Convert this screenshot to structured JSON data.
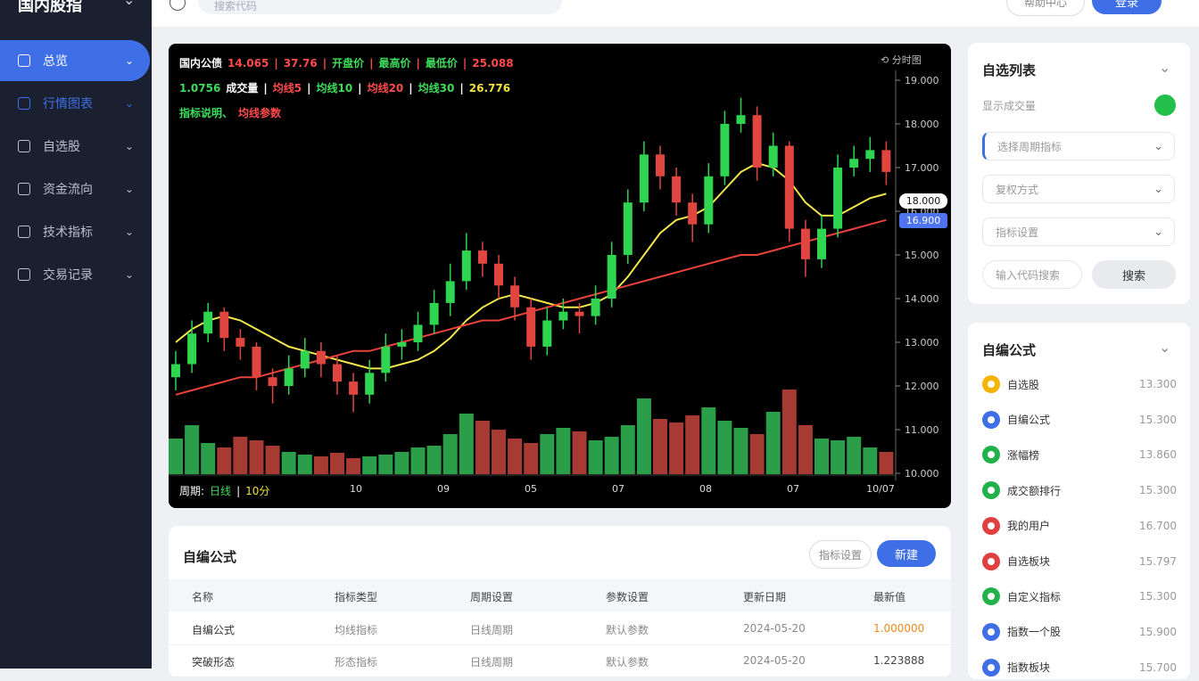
{
  "sidebar": {
    "title": "国内股指",
    "items": [
      "总览",
      "行情图表",
      "自选股",
      "资金流向",
      "技术指标",
      "交易记录"
    ]
  },
  "topbar": {
    "search_placeholder": "搜索代码",
    "buttons": [
      "帮助中心",
      "登录"
    ]
  },
  "chart_data": {
    "type": "candlestick",
    "legend_rows": [
      [
        {
          "text": "国内公债",
          "color": "#ffffff"
        },
        {
          "text": "14.065",
          "color": "#ff4a4a"
        },
        {
          "text": "|",
          "color": "#ff4a4a"
        },
        {
          "text": "37.76",
          "color": "#ff4a4a"
        },
        {
          "text": "|",
          "color": "#ff4a4a"
        },
        {
          "text": "开盘价",
          "color": "#3ddc5a"
        },
        {
          "text": "|",
          "color": "#ff4a4a"
        },
        {
          "text": "最高价",
          "color": "#3ddc5a"
        },
        {
          "text": "|",
          "color": "#ff4a4a"
        },
        {
          "text": "最低价",
          "color": "#3ddc5a"
        },
        {
          "text": "|",
          "color": "#ff4a4a"
        },
        {
          "text": "25.088",
          "color": "#ff4a4a"
        }
      ],
      [
        {
          "text": "1.0756",
          "color": "#3ddc5a"
        },
        {
          "text": "成交量",
          "color": "#ffffff"
        },
        {
          "text": "|",
          "color": "#ffffff"
        },
        {
          "text": "均线5",
          "color": "#ff4a4a"
        },
        {
          "text": "|",
          "color": "#ffffff"
        },
        {
          "text": "均线10",
          "color": "#3ddc5a"
        },
        {
          "text": "|",
          "color": "#ffffff"
        },
        {
          "text": "均线20",
          "color": "#ff4a4a"
        },
        {
          "text": "|",
          "color": "#ffffff"
        },
        {
          "text": "均线30",
          "color": "#3ddc5a"
        },
        {
          "text": "|",
          "color": "#ffffff"
        },
        {
          "text": "26.776",
          "color": "#f0e040"
        }
      ],
      [
        {
          "text": "指标说明、",
          "color": "#3ddc5a"
        },
        {
          "text": "均线参数",
          "color": "#ff4a4a"
        }
      ]
    ],
    "toolbar_text": "⟲ 分时图",
    "footer": [
      {
        "text": "周期:",
        "color": "#ffffff"
      },
      {
        "text": "日线",
        "color": "#3ddc5a"
      },
      {
        "text": "|",
        "color": "#ffffff"
      },
      {
        "text": "10分",
        "color": "#f0e040"
      }
    ],
    "up_color": "#2fd451",
    "down_color": "#e0463f",
    "ylim": [
      10,
      19
    ],
    "yticks": [
      {
        "value": 19,
        "label": "19.000"
      },
      {
        "value": 18,
        "label": "18.000"
      },
      {
        "value": 17,
        "label": "17.000"
      },
      {
        "value": 16,
        "label": "16.000"
      },
      {
        "value": 15,
        "label": "15.000"
      },
      {
        "value": 14,
        "label": "14.000"
      },
      {
        "value": 13,
        "label": "13.000"
      },
      {
        "value": 12,
        "label": "12.000"
      },
      {
        "value": 11,
        "label": "11.000"
      },
      {
        "value": 10,
        "label": "10.000"
      }
    ],
    "x_labels": [
      "10",
      "09",
      "05",
      "07",
      "08",
      "07",
      "10/07"
    ],
    "price_tags": [
      {
        "text": "18.000",
        "color": "#ffffff"
      },
      {
        "text": "16.900",
        "color": "#4f74f0"
      }
    ],
    "candles": [
      [
        12.2,
        12.8,
        11.9,
        12.5
      ],
      [
        12.5,
        13.5,
        12.3,
        13.2
      ],
      [
        13.2,
        13.9,
        13.0,
        13.7
      ],
      [
        13.7,
        13.8,
        12.8,
        13.1
      ],
      [
        13.1,
        13.3,
        12.6,
        12.9
      ],
      [
        12.9,
        13.0,
        11.9,
        12.2
      ],
      [
        12.2,
        12.4,
        11.6,
        12.0
      ],
      [
        12.0,
        12.7,
        11.8,
        12.4
      ],
      [
        12.4,
        13.1,
        12.2,
        12.8
      ],
      [
        12.8,
        13.0,
        12.2,
        12.5
      ],
      [
        12.5,
        12.7,
        11.8,
        12.1
      ],
      [
        12.1,
        12.3,
        11.4,
        11.8
      ],
      [
        11.8,
        12.6,
        11.6,
        12.3
      ],
      [
        12.3,
        13.2,
        12.1,
        12.9
      ],
      [
        12.9,
        13.3,
        12.6,
        13.0
      ],
      [
        13.0,
        13.7,
        12.8,
        13.4
      ],
      [
        13.4,
        14.2,
        13.2,
        13.9
      ],
      [
        13.9,
        14.8,
        13.6,
        14.4
      ],
      [
        14.4,
        15.5,
        14.2,
        15.1
      ],
      [
        15.1,
        15.3,
        14.5,
        14.8
      ],
      [
        14.8,
        15.0,
        14.0,
        14.3
      ],
      [
        14.3,
        14.5,
        13.5,
        13.8
      ],
      [
        13.8,
        14.0,
        12.6,
        12.9
      ],
      [
        12.9,
        13.8,
        12.7,
        13.5
      ],
      [
        13.5,
        14.0,
        13.3,
        13.7
      ],
      [
        13.7,
        13.9,
        13.2,
        13.6
      ],
      [
        13.6,
        14.3,
        13.4,
        14.0
      ],
      [
        14.0,
        15.3,
        13.8,
        15.0
      ],
      [
        15.0,
        16.5,
        14.8,
        16.2
      ],
      [
        16.2,
        17.6,
        16.0,
        17.3
      ],
      [
        17.3,
        17.5,
        16.5,
        16.8
      ],
      [
        16.8,
        17.0,
        15.9,
        16.2
      ],
      [
        16.2,
        16.4,
        15.3,
        15.7
      ],
      [
        15.7,
        17.1,
        15.5,
        16.8
      ],
      [
        16.8,
        18.3,
        16.6,
        18.0
      ],
      [
        18.0,
        18.6,
        17.8,
        18.2
      ],
      [
        18.2,
        18.4,
        16.7,
        17.0
      ],
      [
        17.0,
        17.8,
        16.8,
        17.5
      ],
      [
        17.5,
        17.6,
        15.3,
        15.6
      ],
      [
        15.6,
        15.8,
        14.5,
        14.9
      ],
      [
        14.9,
        15.9,
        14.7,
        15.6
      ],
      [
        15.6,
        17.3,
        15.4,
        17.0
      ],
      [
        17.0,
        17.5,
        16.8,
        17.2
      ],
      [
        17.2,
        17.7,
        16.9,
        17.4
      ],
      [
        17.4,
        17.6,
        16.6,
        16.9
      ]
    ],
    "volumes": [
      40,
      55,
      35,
      30,
      42,
      38,
      32,
      25,
      22,
      20,
      24,
      18,
      20,
      22,
      25,
      30,
      32,
      45,
      68,
      60,
      50,
      40,
      35,
      45,
      52,
      48,
      38,
      42,
      55,
      85,
      62,
      58,
      66,
      75,
      60,
      52,
      45,
      70,
      95,
      55,
      40,
      38,
      42,
      30,
      25
    ],
    "ma_lines": [
      {
        "color": "#f2e64a",
        "values": [
          13.0,
          13.3,
          13.5,
          13.6,
          13.5,
          13.3,
          13.1,
          12.9,
          12.8,
          12.7,
          12.6,
          12.5,
          12.4,
          12.4,
          12.5,
          12.6,
          12.8,
          13.1,
          13.5,
          13.8,
          14.0,
          14.1,
          14.0,
          13.9,
          13.8,
          13.8,
          13.9,
          14.1,
          14.5,
          15.0,
          15.5,
          15.8,
          15.9,
          16.1,
          16.5,
          16.9,
          17.1,
          17.0,
          16.7,
          16.2,
          15.9,
          15.9,
          16.1,
          16.3,
          16.4
        ]
      },
      {
        "color": "#e8423a",
        "values": [
          11.8,
          11.9,
          12.0,
          12.1,
          12.2,
          12.2,
          12.3,
          12.4,
          12.5,
          12.6,
          12.7,
          12.8,
          12.8,
          12.9,
          13.0,
          13.1,
          13.2,
          13.3,
          13.4,
          13.5,
          13.5,
          13.6,
          13.7,
          13.8,
          13.9,
          14.0,
          14.1,
          14.2,
          14.3,
          14.4,
          14.5,
          14.6,
          14.7,
          14.8,
          14.9,
          15.0,
          15.0,
          15.1,
          15.2,
          15.3,
          15.4,
          15.5,
          15.6,
          15.7,
          15.8
        ]
      }
    ]
  },
  "watch_panel": {
    "title": "自选列表",
    "toggle_label": "显示成交量",
    "selects": [
      "选择周期指标",
      "复权方式",
      "指标设置"
    ],
    "search_placeholder": "输入代码搜索",
    "search_button": "搜索"
  },
  "formula_panel": {
    "title": "自编公式",
    "items": [
      {
        "name": "自选股",
        "value": "13.300",
        "color": "#f5b400"
      },
      {
        "name": "自编公式",
        "value": "15.300",
        "color": "#3f6fe6"
      },
      {
        "name": "涨幅榜",
        "value": "13.860",
        "color": "#22b24c"
      },
      {
        "name": "成交额排行",
        "value": "15.300",
        "color": "#22b24c"
      },
      {
        "name": "我的用户",
        "value": "16.700",
        "color": "#e04040"
      },
      {
        "name": "自选板块",
        "value": "15.797",
        "color": "#e04040"
      },
      {
        "name": "自定义指标",
        "value": "15.300",
        "color": "#22b24c"
      },
      {
        "name": "指数一个股",
        "value": "15.900",
        "color": "#3f6fe6"
      },
      {
        "name": "指数板块",
        "value": "15.700",
        "color": "#3f6fe6"
      }
    ]
  },
  "table": {
    "title": "自编公式",
    "buttons": [
      "指标设置",
      "新建"
    ],
    "header": [
      "名称",
      "指标类型",
      "周期设置",
      "参数设置",
      "更新日期",
      "最新值"
    ],
    "rows": [
      [
        "自编公式",
        "均线指标",
        "日线周期",
        "默认参数",
        "2024-05-20",
        "1.000000"
      ],
      [
        "突破形态",
        "形态指标",
        "日线周期",
        "默认参数",
        "2024-05-20",
        "1.223888"
      ]
    ]
  }
}
